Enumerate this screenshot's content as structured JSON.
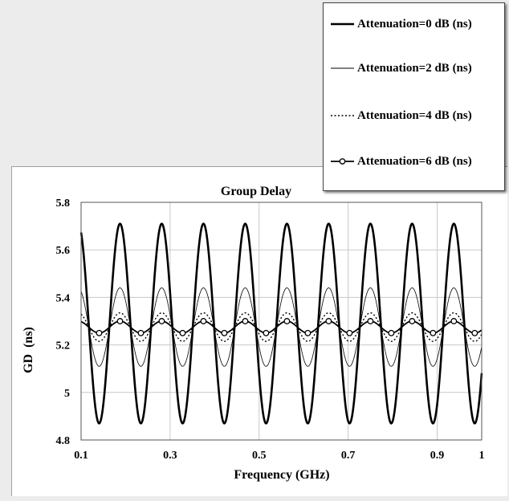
{
  "chart_data": {
    "type": "line",
    "title": "Group Delay",
    "xlabel": "Frequency (GHz)",
    "ylabel": "GD  (ns)",
    "xlim": [
      0.1,
      1.0
    ],
    "ylim": [
      4.8,
      5.8
    ],
    "xticks": [
      0.1,
      0.3,
      0.5,
      0.7,
      0.9,
      1.0
    ],
    "xtick_labels": [
      "0.1",
      "0.3",
      "0.5",
      "0.7",
      "0.9",
      "1"
    ],
    "yticks": [
      4.8,
      5.0,
      5.2,
      5.4,
      5.6,
      5.8
    ],
    "ytick_labels": [
      "4.8",
      "5",
      "5.2",
      "5.4",
      "5.6",
      "5.8"
    ],
    "grid": true,
    "legend_position": "top-right",
    "series": [
      {
        "name": "Attenuation=0 dB (ns)",
        "style": "thick-solid",
        "mean": 5.29,
        "amplitude": 0.42,
        "period_ghz": 0.09375,
        "first_peak_ghz": 0.0937
      },
      {
        "name": "Attenuation=2 dB (ns)",
        "style": "thin-solid",
        "mean": 5.275,
        "amplitude": 0.165,
        "period_ghz": 0.09375,
        "first_peak_ghz": 0.0937
      },
      {
        "name": "Attenuation=4 dB (ns)",
        "style": "dotted",
        "mean": 5.275,
        "amplitude": 0.06,
        "period_ghz": 0.09375,
        "first_peak_ghz": 0.0937
      },
      {
        "name": "Attenuation=6 dB (ns)",
        "style": "circle-markers",
        "mean": 5.275,
        "amplitude": 0.025,
        "period_ghz": 0.09375,
        "first_peak_ghz": 0.0937
      }
    ]
  }
}
